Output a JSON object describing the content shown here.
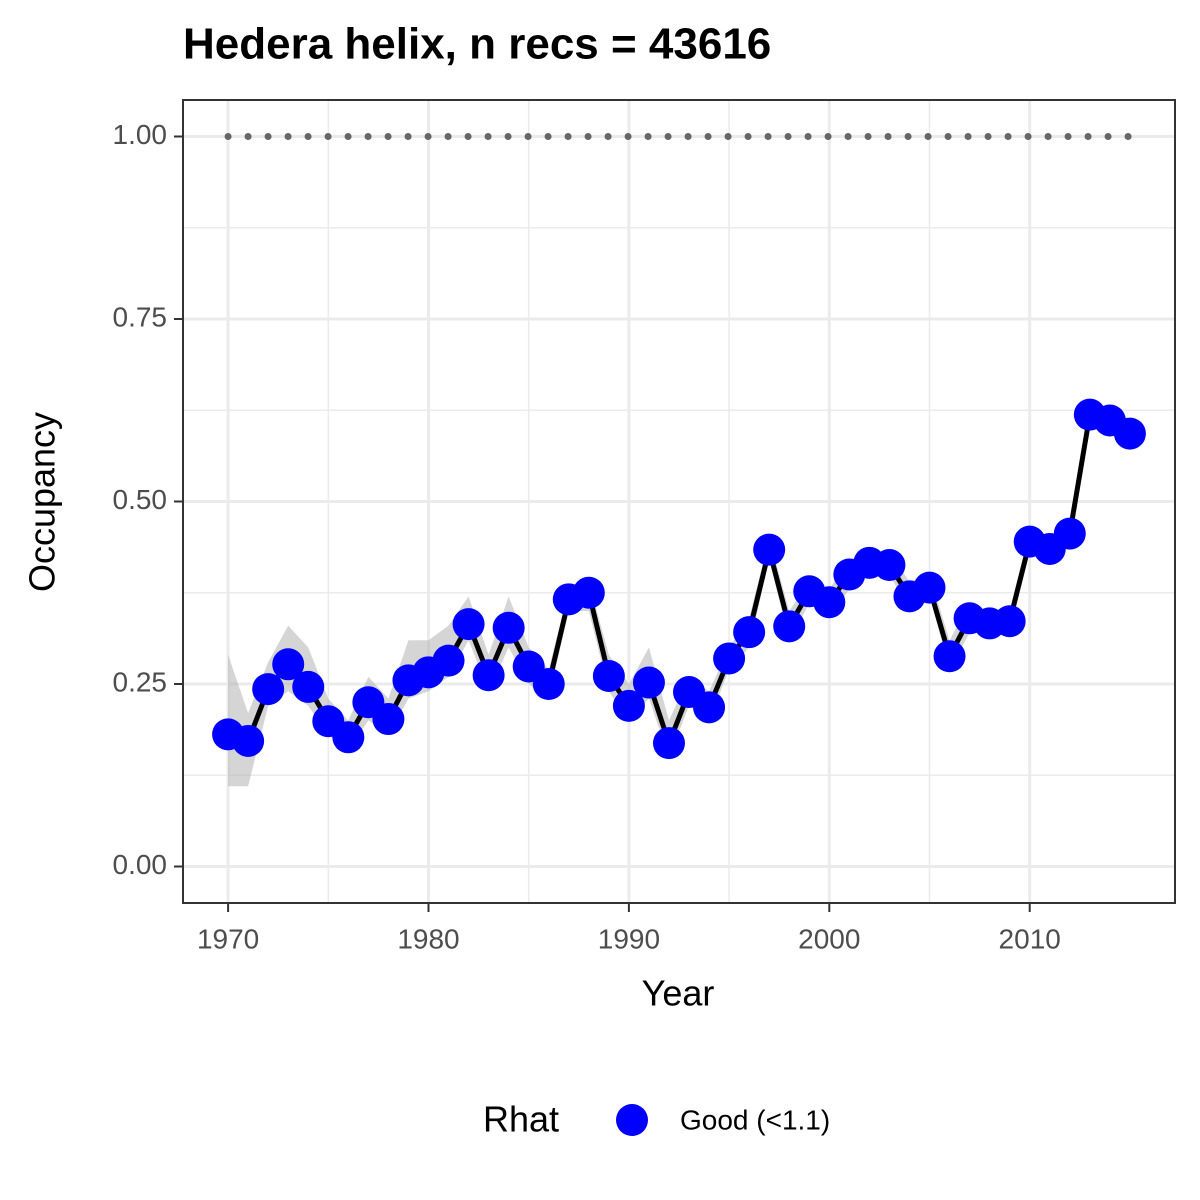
{
  "chart_data": {
    "type": "line",
    "title": "Hedera helix, n recs = 43616",
    "x_label": "Year",
    "y_label": "Occupancy",
    "legend_title": "Rhat",
    "legend_position": "bottom",
    "x": [
      1970,
      1971,
      1972,
      1973,
      1974,
      1975,
      1976,
      1977,
      1978,
      1979,
      1980,
      1981,
      1982,
      1983,
      1984,
      1985,
      1986,
      1987,
      1988,
      1989,
      1990,
      1991,
      1992,
      1993,
      1994,
      1995,
      1996,
      1997,
      1998,
      1999,
      2000,
      2001,
      2002,
      2003,
      2004,
      2005,
      2006,
      2007,
      2008,
      2009,
      2010,
      2011,
      2012,
      2013,
      2014,
      2015
    ],
    "series": [
      {
        "name": "Good (<1.1)",
        "color": "#0000ff",
        "line_color": "#000000",
        "values": [
          0.181,
          0.172,
          0.243,
          0.277,
          0.246,
          0.199,
          0.177,
          0.225,
          0.202,
          0.255,
          0.266,
          0.282,
          0.332,
          0.262,
          0.327,
          0.274,
          0.25,
          0.366,
          0.375,
          0.261,
          0.22,
          0.252,
          0.169,
          0.239,
          0.218,
          0.285,
          0.321,
          0.434,
          0.329,
          0.377,
          0.362,
          0.4,
          0.416,
          0.413,
          0.37,
          0.382,
          0.288,
          0.34,
          0.333,
          0.336,
          0.445,
          0.435,
          0.456,
          0.619,
          0.611,
          0.593
        ],
        "ci_lower": [
          0.11,
          0.11,
          0.22,
          0.24,
          0.22,
          0.18,
          0.16,
          0.2,
          0.18,
          0.23,
          0.24,
          0.26,
          0.31,
          0.24,
          0.3,
          0.25,
          0.23,
          0.35,
          0.35,
          0.24,
          0.2,
          0.23,
          0.15,
          0.22,
          0.2,
          0.27,
          0.3,
          0.42,
          0.31,
          0.36,
          0.34,
          0.38,
          0.4,
          0.4,
          0.35,
          0.37,
          0.27,
          0.32,
          0.32,
          0.32,
          0.43,
          0.42,
          0.44,
          0.6,
          0.6,
          0.58
        ],
        "ci_upper": [
          0.29,
          0.21,
          0.28,
          0.33,
          0.3,
          0.23,
          0.2,
          0.26,
          0.23,
          0.31,
          0.31,
          0.33,
          0.37,
          0.29,
          0.37,
          0.3,
          0.27,
          0.38,
          0.39,
          0.29,
          0.25,
          0.3,
          0.2,
          0.26,
          0.24,
          0.3,
          0.34,
          0.45,
          0.35,
          0.39,
          0.38,
          0.42,
          0.43,
          0.43,
          0.39,
          0.4,
          0.31,
          0.36,
          0.35,
          0.35,
          0.46,
          0.45,
          0.47,
          0.63,
          0.62,
          0.61
        ],
        "ci_color": "#b3b3b3"
      }
    ],
    "reference": {
      "value": 1,
      "x": [
        1970,
        2015
      ],
      "color": "#666666"
    },
    "xlim": [
      1967.75,
      2017.25
    ],
    "xticks": [
      1970,
      1980,
      1990,
      2000,
      2010
    ],
    "ylim": [
      -0.05,
      1.05
    ],
    "yticks": [
      {
        "value": 0,
        "label": "0.00"
      },
      {
        "value": 0.25,
        "label": "0.25"
      },
      {
        "value": 0.5,
        "label": "0.50"
      },
      {
        "value": 0.75,
        "label": "0.75"
      },
      {
        "value": 1,
        "label": "1.00"
      }
    ],
    "grid": true,
    "minor_grid": true
  }
}
